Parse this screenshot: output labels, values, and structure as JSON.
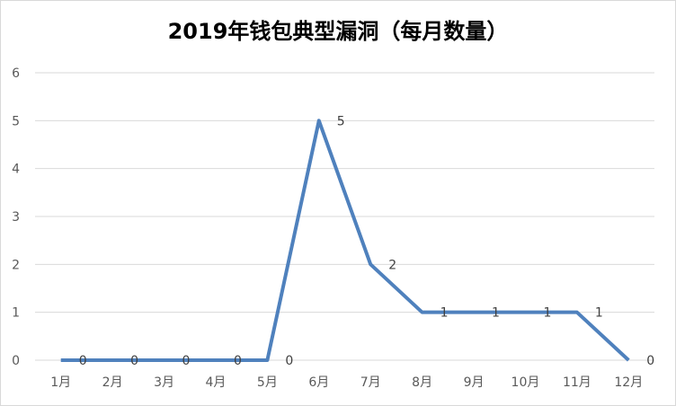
{
  "chart_data": {
    "type": "line",
    "title": "2019年钱包典型漏洞（每月数量）",
    "xlabel": "",
    "ylabel": "",
    "categories": [
      "1月",
      "2月",
      "3月",
      "4月",
      "5月",
      "6月",
      "7月",
      "8月",
      "9月",
      "10月",
      "11月",
      "12月"
    ],
    "series": [
      {
        "values": [
          0,
          0,
          0,
          0,
          0,
          5,
          2,
          1,
          1,
          1,
          1,
          0
        ]
      }
    ],
    "ylim": [
      0,
      6
    ],
    "yticks": [
      "0",
      "1",
      "2",
      "3",
      "4",
      "5",
      "6"
    ],
    "grid": true,
    "legend": "none",
    "colors": {
      "line": "#4f81bd",
      "grid": "#d9d9d9",
      "text": "#595959"
    }
  }
}
